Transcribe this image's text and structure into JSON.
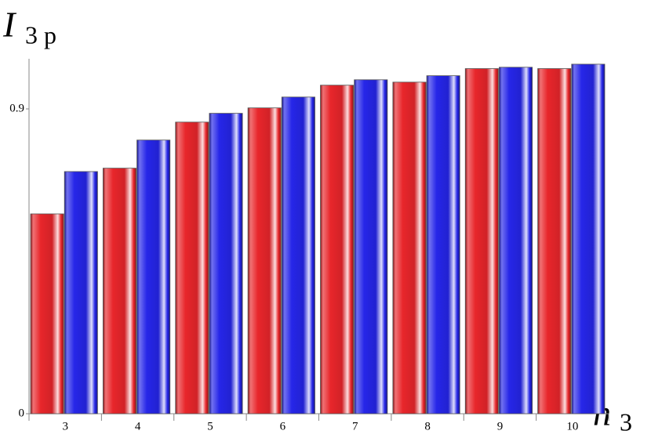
{
  "chart_data": {
    "type": "bar",
    "y_label": "I",
    "y_label_sub": "3 p",
    "x_label": "n",
    "x_label_sub": "3",
    "categories": [
      "3",
      "4",
      "5",
      "6",
      "7",
      "8",
      "9",
      "10"
    ],
    "series": [
      {
        "color": "#e8262b",
        "values": [
          0.59,
          0.725,
          0.861,
          0.903,
          0.97,
          0.979,
          1.019,
          1.019
        ]
      },
      {
        "color": "#2626e8",
        "values": [
          0.715,
          0.808,
          0.887,
          0.935,
          0.986,
          0.998,
          1.023,
          1.032
        ]
      }
    ],
    "ylim": [
      0,
      1.048
    ],
    "yticks": [
      0,
      0.9
    ],
    "grid": false
  }
}
